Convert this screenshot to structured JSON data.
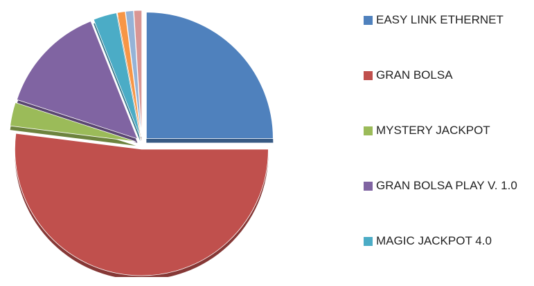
{
  "chart_data": {
    "type": "pie",
    "categories": [
      "EASY LINK ETHERNET",
      "GRAN BOLSA",
      "MYSTERY JACKPOT",
      "GRAN BOLSA PLAY V. 1.0",
      "MAGIC JACKPOT 4.0",
      null,
      null,
      null
    ],
    "values": [
      25,
      52,
      3,
      14,
      3,
      1,
      1,
      1
    ],
    "colors": [
      "#4f81bd",
      "#c0504d",
      "#9bbb59",
      "#8064a2",
      "#4bacc6",
      "#f79646",
      "#95b3d7",
      "#d99694"
    ],
    "legend": "right"
  }
}
